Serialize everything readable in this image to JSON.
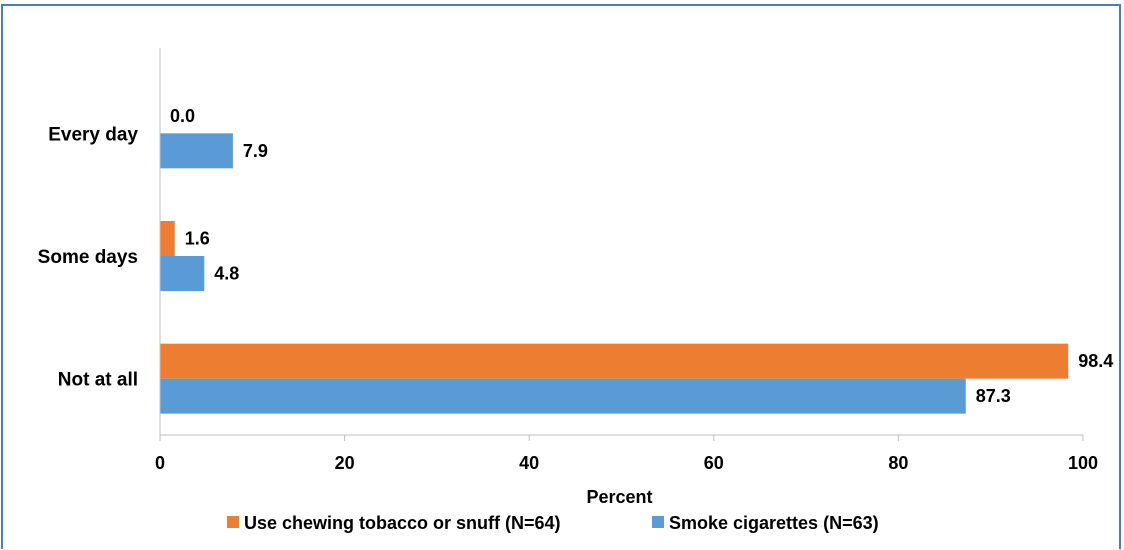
{
  "chart_data": {
    "type": "bar",
    "orientation": "horizontal",
    "categories": [
      "Every day",
      "Some days",
      "Not at all"
    ],
    "series": [
      {
        "name": "Use chewing tobacco or snuff (N=64)",
        "values": [
          0.0,
          1.6,
          98.4
        ],
        "labels": [
          "0.0",
          "1.6",
          "98.4"
        ],
        "color": "#ed7d31"
      },
      {
        "name": "Smoke cigarettes (N=63)",
        "values": [
          7.9,
          4.8,
          87.3
        ],
        "labels": [
          "7.9",
          "4.8",
          "87.3"
        ],
        "color": "#5b9bd5"
      }
    ],
    "xlabel": "Percent",
    "xlim": [
      0,
      100
    ],
    "xticks": [
      "0",
      "20",
      "40",
      "60",
      "80",
      "100"
    ],
    "xtick_values": [
      0,
      20,
      40,
      60,
      80,
      100
    ],
    "grid": false,
    "legend_position": "bottom"
  }
}
